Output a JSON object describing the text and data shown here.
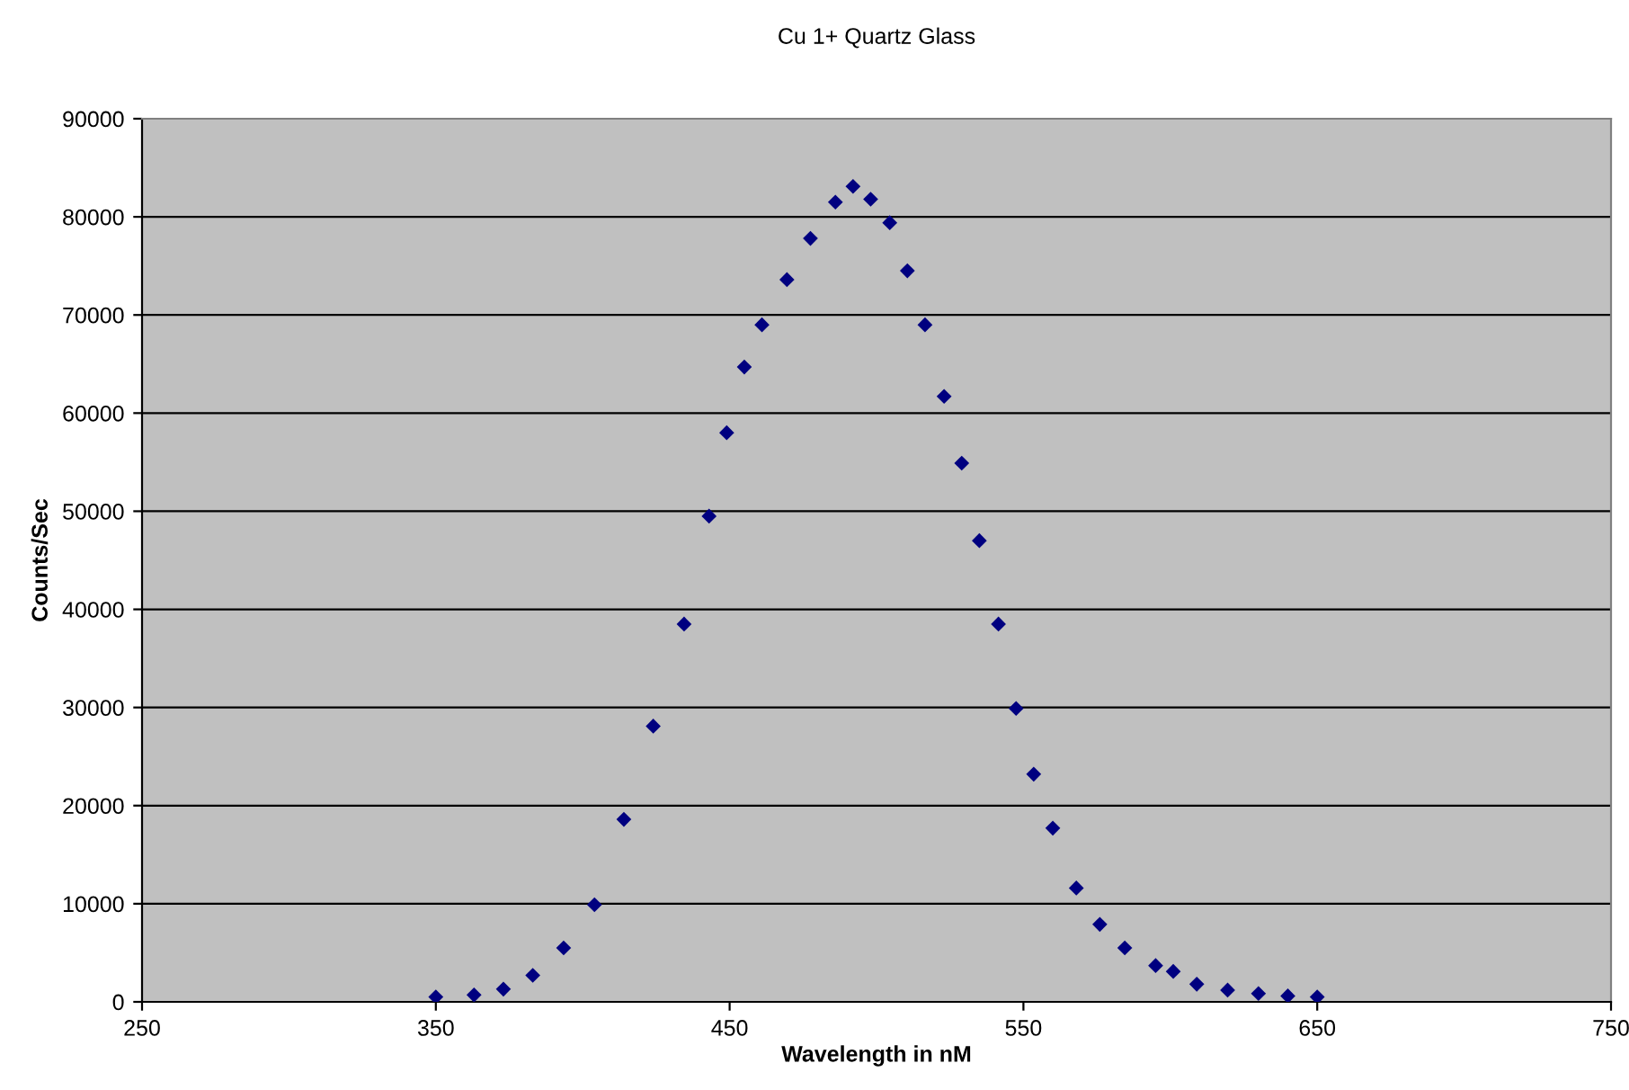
{
  "chart_data": {
    "type": "scatter",
    "title": "Cu 1+ Quartz Glass",
    "xlabel": "Wavelength in nM",
    "ylabel": "Counts/Sec",
    "x": [
      350,
      363,
      373,
      383,
      393.5,
      404,
      414,
      424,
      434.5,
      443,
      449,
      455,
      461,
      469.5,
      477.5,
      486,
      492,
      498,
      504.5,
      510.5,
      516.5,
      523,
      529,
      535,
      541.5,
      547.5,
      553.5,
      560,
      568,
      576,
      584.5,
      595,
      601,
      609,
      619.5,
      630,
      640,
      650
    ],
    "series": [
      {
        "color": "#000080",
        "values": [
          500,
          700,
          1300,
          2700,
          5500,
          9900,
          18600,
          28100,
          38500,
          49500,
          58000,
          64700,
          69000,
          73600,
          77800,
          81500,
          83100,
          81800,
          79400,
          74500,
          69000,
          61700,
          54900,
          47000,
          38500,
          29900,
          23200,
          17700,
          11600,
          7900,
          5500,
          3700,
          3100,
          1800,
          1200,
          850,
          600,
          500
        ]
      }
    ],
    "xlim": [
      250,
      750
    ],
    "xticks": [
      250,
      350,
      450,
      550,
      650,
      750
    ],
    "ylim": [
      0,
      90000
    ],
    "yticks": [
      0,
      10000,
      20000,
      30000,
      40000,
      50000,
      60000,
      70000,
      80000,
      90000
    ],
    "grid": "y",
    "marker": "diamond",
    "legend": false
  }
}
